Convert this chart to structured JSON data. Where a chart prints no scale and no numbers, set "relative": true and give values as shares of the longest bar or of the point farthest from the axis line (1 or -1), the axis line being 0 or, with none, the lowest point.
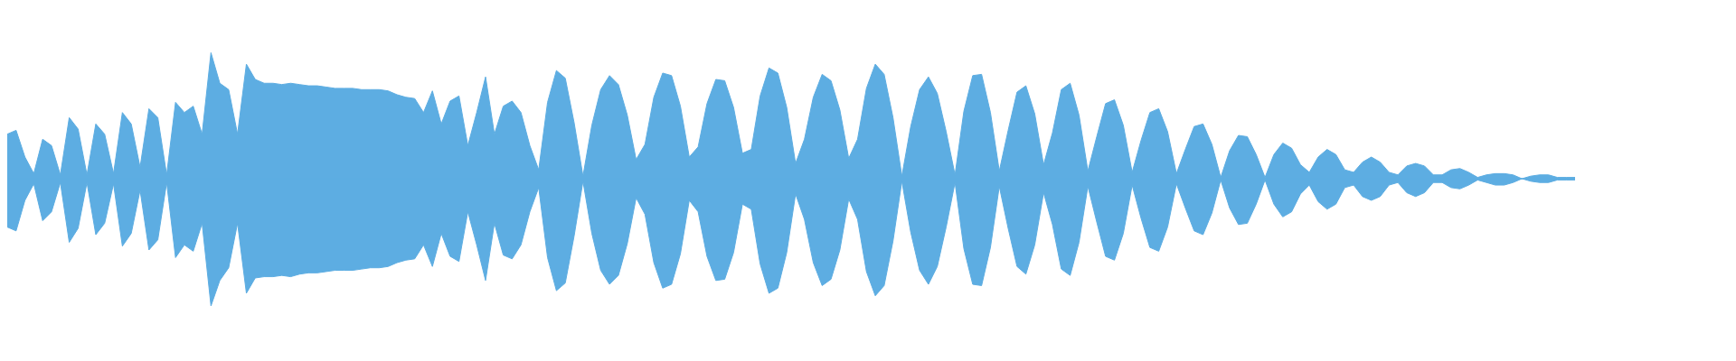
{
  "chart_data": {
    "type": "area",
    "relative": true,
    "ref_lines": [
      {
        "axis": "y",
        "value": 0,
        "color": "#5dade2"
      }
    ],
    "categories": [
      null,
      null,
      null,
      null,
      null,
      null,
      null,
      null,
      null,
      null,
      null,
      null,
      null,
      null,
      null,
      null,
      null,
      null,
      null,
      null,
      null,
      null,
      null,
      null,
      null,
      null,
      null,
      null,
      null,
      null,
      null,
      null,
      null,
      null,
      null,
      null,
      null,
      null,
      null,
      null,
      null,
      null,
      null,
      null,
      null,
      null,
      null,
      null,
      null,
      null,
      null,
      null,
      null,
      null,
      null,
      null,
      null,
      null,
      null,
      null,
      null,
      null,
      null,
      null,
      null,
      null,
      null,
      null,
      null,
      null,
      null,
      null,
      null,
      null,
      null,
      null,
      null,
      null,
      null,
      null,
      null,
      null,
      null,
      null,
      null,
      null,
      null,
      null,
      null,
      null,
      null,
      null,
      null,
      null,
      null,
      null,
      null,
      null,
      null,
      null,
      null,
      null,
      null,
      null,
      null,
      null,
      null,
      null,
      null,
      null,
      null,
      null,
      null,
      null,
      null,
      null,
      null,
      null,
      null,
      null,
      null,
      null,
      null,
      null,
      null,
      null,
      null,
      null,
      null,
      null,
      null,
      null,
      null,
      null,
      null,
      null,
      null,
      null,
      null,
      null,
      null,
      null,
      null,
      null,
      null,
      null,
      null,
      null,
      null,
      null,
      null,
      null,
      null,
      null,
      null,
      null,
      null,
      null,
      null,
      null,
      null,
      null,
      null,
      null,
      null,
      null,
      null,
      null,
      null,
      null,
      null,
      null,
      null,
      null,
      null,
      null,
      null,
      null
    ],
    "series": [
      {
        "color": "#5dade2",
        "values": [
          0.35,
          0.38,
          0.17,
          0.04,
          0.31,
          0.26,
          0.03,
          0.48,
          0.39,
          0.03,
          0.43,
          0.35,
          0.04,
          0.52,
          0.43,
          0.09,
          0.55,
          0.48,
          0.03,
          0.6,
          0.52,
          0.57,
          0.35,
          0.99,
          0.75,
          0.7,
          0.35,
          0.9,
          0.78,
          0.75,
          0.75,
          0.74,
          0.75,
          0.74,
          0.73,
          0.73,
          0.72,
          0.71,
          0.71,
          0.71,
          0.7,
          0.7,
          0.7,
          0.69,
          0.66,
          0.64,
          0.63,
          0.52,
          0.69,
          0.43,
          0.61,
          0.65,
          0.26,
          0.52,
          0.8,
          0.35,
          0.57,
          0.61,
          0.52,
          0.26,
          0.07,
          0.6,
          0.85,
          0.79,
          0.44,
          0.02,
          0.42,
          0.7,
          0.81,
          0.74,
          0.5,
          0.15,
          0.27,
          0.64,
          0.83,
          0.81,
          0.57,
          0.17,
          0.25,
          0.59,
          0.78,
          0.77,
          0.56,
          0.2,
          0.23,
          0.65,
          0.87,
          0.83,
          0.56,
          0.12,
          0.31,
          0.64,
          0.82,
          0.77,
          0.54,
          0.16,
          0.31,
          0.71,
          0.9,
          0.82,
          0.48,
          0.02,
          0.41,
          0.7,
          0.8,
          0.67,
          0.37,
          0.03,
          0.53,
          0.81,
          0.82,
          0.52,
          0.06,
          0.38,
          0.68,
          0.73,
          0.51,
          0.11,
          0.36,
          0.7,
          0.75,
          0.5,
          0.06,
          0.33,
          0.59,
          0.62,
          0.42,
          0.05,
          0.3,
          0.52,
          0.55,
          0.37,
          0.04,
          0.23,
          0.41,
          0.43,
          0.27,
          0.01,
          0.22,
          0.34,
          0.33,
          0.19,
          0.01,
          0.19,
          0.28,
          0.24,
          0.11,
          0.05,
          0.17,
          0.23,
          0.19,
          0.07,
          0.05,
          0.13,
          0.17,
          0.13,
          0.05,
          0.03,
          0.1,
          0.12,
          0.1,
          0.03,
          0.03,
          0.07,
          0.08,
          0.05,
          0.01,
          0.03,
          0.04,
          0.04,
          0.03,
          0,
          0.02,
          0.03,
          0.03,
          0.01,
          0.01,
          0.01
        ]
      },
      {
        "color": "#5dade2",
        "values": [
          -0.38,
          -0.41,
          -0.17,
          -0.04,
          -0.33,
          -0.26,
          -0.03,
          -0.5,
          -0.39,
          -0.03,
          -0.44,
          -0.35,
          -0.04,
          -0.53,
          -0.43,
          -0.09,
          -0.56,
          -0.48,
          -0.03,
          -0.62,
          -0.52,
          -0.57,
          -0.35,
          -1,
          -0.8,
          -0.7,
          -0.35,
          -0.9,
          -0.78,
          -0.77,
          -0.77,
          -0.76,
          -0.77,
          -0.75,
          -0.74,
          -0.74,
          -0.73,
          -0.72,
          -0.72,
          -0.72,
          -0.71,
          -0.7,
          -0.7,
          -0.69,
          -0.66,
          -0.64,
          -0.63,
          -0.52,
          -0.69,
          -0.43,
          -0.61,
          -0.65,
          -0.26,
          -0.52,
          -0.8,
          -0.35,
          -0.6,
          -0.63,
          -0.52,
          -0.26,
          -0.07,
          -0.62,
          -0.88,
          -0.82,
          -0.45,
          -0.02,
          -0.43,
          -0.72,
          -0.83,
          -0.76,
          -0.51,
          -0.15,
          -0.28,
          -0.66,
          -0.86,
          -0.83,
          -0.59,
          -0.17,
          -0.26,
          -0.61,
          -0.8,
          -0.79,
          -0.58,
          -0.2,
          -0.24,
          -0.67,
          -0.9,
          -0.86,
          -0.58,
          -0.12,
          -0.32,
          -0.66,
          -0.84,
          -0.79,
          -0.56,
          -0.16,
          -0.32,
          -0.73,
          -0.92,
          -0.84,
          -0.49,
          -0.02,
          -0.42,
          -0.72,
          -0.83,
          -0.69,
          -0.38,
          -0.03,
          -0.55,
          -0.83,
          -0.84,
          -0.54,
          -0.06,
          -0.39,
          -0.69,
          -0.75,
          -0.52,
          -0.11,
          -0.36,
          -0.71,
          -0.76,
          -0.5,
          -0.06,
          -0.34,
          -0.61,
          -0.64,
          -0.43,
          -0.05,
          -0.31,
          -0.54,
          -0.57,
          -0.38,
          -0.04,
          -0.23,
          -0.41,
          -0.44,
          -0.27,
          -0.01,
          -0.23,
          -0.36,
          -0.35,
          -0.2,
          -0.01,
          -0.2,
          -0.3,
          -0.26,
          -0.12,
          -0.05,
          -0.18,
          -0.24,
          -0.2,
          -0.07,
          -0.05,
          -0.14,
          -0.17,
          -0.14,
          -0.05,
          -0.03,
          -0.11,
          -0.14,
          -0.11,
          -0.03,
          -0.03,
          -0.07,
          -0.08,
          -0.05,
          -0.01,
          -0.03,
          -0.05,
          -0.05,
          -0.03,
          0,
          -0.02,
          -0.03,
          -0.03,
          -0.01,
          -0.01,
          -0.01
        ]
      }
    ]
  }
}
